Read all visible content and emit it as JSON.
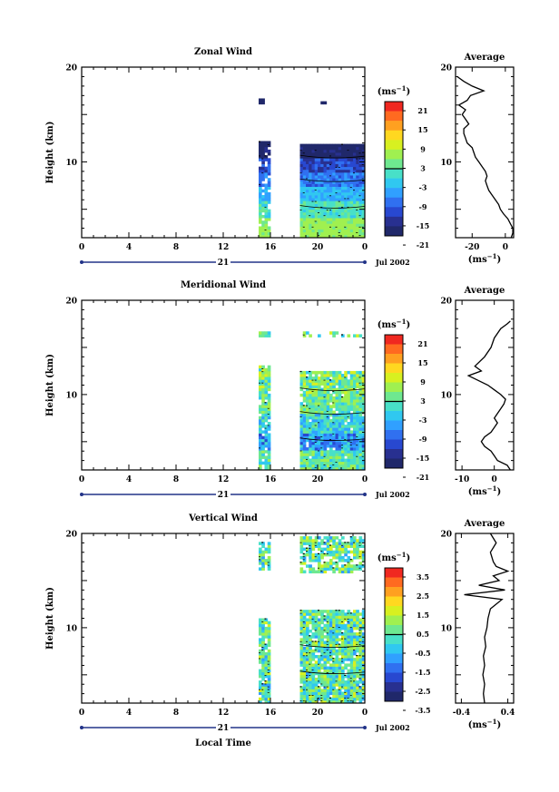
{
  "chart_data": [
    {
      "type": "heatmap",
      "title": "Zonal Wind",
      "ylabel": "Height (km)",
      "ylim": [
        2,
        20
      ],
      "y_ticks": [
        20,
        10
      ],
      "xlim": [
        0,
        24
      ],
      "x_ticks": [
        "0",
        "4",
        "8",
        "12",
        "16",
        "20",
        "0"
      ],
      "date_day": "21",
      "date_month": "Jul 2002",
      "colorbar": {
        "unit": "(ms",
        "unit_exp": "−1",
        "unit_close": ")",
        "labels": [
          "21",
          "15",
          "9",
          "3",
          "-3",
          "-9",
          "-15",
          "-21"
        ],
        "colors": [
          "#f02820",
          "#ff6a20",
          "#ffa020",
          "#ffd820",
          "#d8f020",
          "#a0f050",
          "#6ee890",
          "#48e0c8",
          "#30c8f0",
          "#30a0ff",
          "#3070f0",
          "#2848d0",
          "#283090",
          "#20286a"
        ]
      },
      "average": {
        "title": "Average",
        "xlabel": "(ms",
        "xlabel_exp": "−1",
        "xlabel_close": ")",
        "xlim": [
          -30,
          5
        ],
        "x_ticks": [
          "-20",
          "0"
        ],
        "y_ticks": [
          "20",
          "10"
        ],
        "profile": [
          [
            3.5,
            2
          ],
          [
            4.5,
            2.5
          ],
          [
            4.5,
            3
          ],
          [
            3,
            3.5
          ],
          [
            1.5,
            4
          ],
          [
            -1,
            4.5
          ],
          [
            -3,
            5
          ],
          [
            -4,
            5.5
          ],
          [
            -6,
            6
          ],
          [
            -8,
            6.5
          ],
          [
            -10,
            7
          ],
          [
            -11,
            7.5
          ],
          [
            -12,
            8
          ],
          [
            -11,
            8.5
          ],
          [
            -12,
            9
          ],
          [
            -14,
            9.5
          ],
          [
            -16,
            10
          ],
          [
            -18,
            10.5
          ],
          [
            -19,
            11
          ],
          [
            -20,
            11.5
          ],
          [
            -23,
            12
          ],
          [
            -24,
            12.5
          ],
          [
            -25,
            13
          ],
          [
            -25,
            13.5
          ],
          [
            -22,
            14
          ],
          [
            -24,
            14.5
          ],
          [
            -26,
            15
          ],
          [
            -24,
            15.5
          ],
          [
            -28,
            16
          ],
          [
            -23,
            16.5
          ],
          [
            -21,
            17
          ],
          [
            -13,
            17.5
          ],
          [
            -20,
            18
          ],
          [
            -25,
            18.5
          ],
          [
            -29,
            19
          ]
        ]
      }
    },
    {
      "type": "heatmap",
      "title": "Meridional Wind",
      "ylabel": "Height (km)",
      "ylim": [
        2,
        20
      ],
      "y_ticks": [
        20,
        10
      ],
      "xlim": [
        0,
        24
      ],
      "x_ticks": [
        "0",
        "4",
        "8",
        "12",
        "16",
        "20",
        "0"
      ],
      "date_day": "21",
      "date_month": "Jul 2002",
      "colorbar": {
        "unit": "(ms",
        "unit_exp": "−1",
        "unit_close": ")",
        "labels": [
          "21",
          "15",
          "9",
          "3",
          "-3",
          "-9",
          "-15",
          "-21"
        ],
        "colors": [
          "#f02820",
          "#ff6a20",
          "#ffa020",
          "#ffd820",
          "#d8f020",
          "#a0f050",
          "#6ee890",
          "#48e0c8",
          "#30c8f0",
          "#30a0ff",
          "#3070f0",
          "#2848d0",
          "#283090",
          "#20286a"
        ]
      },
      "average": {
        "title": "Average",
        "xlabel": "(ms",
        "xlabel_exp": "−1",
        "xlabel_close": ")",
        "xlim": [
          -12,
          6
        ],
        "x_ticks": [
          "-10",
          "0"
        ],
        "y_ticks": [
          "20",
          "10"
        ],
        "profile": [
          [
            5,
            2
          ],
          [
            4,
            2.5
          ],
          [
            1,
            3
          ],
          [
            0,
            3.5
          ],
          [
            -1,
            4
          ],
          [
            -3,
            4.5
          ],
          [
            -4,
            5
          ],
          [
            -3,
            5.5
          ],
          [
            -1,
            6
          ],
          [
            0,
            6.5
          ],
          [
            1,
            7
          ],
          [
            0,
            7.5
          ],
          [
            1,
            8
          ],
          [
            2,
            8.5
          ],
          [
            3,
            9
          ],
          [
            3.5,
            9.5
          ],
          [
            2,
            10
          ],
          [
            0,
            10.5
          ],
          [
            -2,
            11
          ],
          [
            -5,
            11.5
          ],
          [
            -8,
            12
          ],
          [
            -4,
            12.5
          ],
          [
            -6,
            13
          ],
          [
            -3,
            14
          ],
          [
            -1,
            15
          ],
          [
            0,
            16
          ],
          [
            2,
            17
          ],
          [
            4,
            17.5
          ],
          [
            5,
            17.8
          ]
        ]
      }
    },
    {
      "type": "heatmap",
      "title": "Vertical Wind",
      "xlabel": "Local Time",
      "ylabel": "Height (km)",
      "ylim": [
        2,
        20
      ],
      "y_ticks": [
        20,
        10
      ],
      "xlim": [
        0,
        24
      ],
      "x_ticks": [
        "0",
        "4",
        "8",
        "12",
        "16",
        "20",
        "0"
      ],
      "date_day": "21",
      "date_month": "Jul 2002",
      "colorbar": {
        "unit": "(ms",
        "unit_exp": "−1",
        "unit_close": ")",
        "labels": [
          "3.5",
          "2.5",
          "1.5",
          "0.5",
          "-0.5",
          "-1.5",
          "-2.5",
          "-3.5"
        ],
        "colors": [
          "#f02820",
          "#ff6a20",
          "#ffa020",
          "#ffd820",
          "#d8f020",
          "#a0f050",
          "#6ee890",
          "#48e0c8",
          "#30c8f0",
          "#30a0ff",
          "#3070f0",
          "#2848d0",
          "#283090",
          "#20286a"
        ]
      },
      "average": {
        "title": "Average",
        "xlabel": "(ms",
        "xlabel_exp": "−1",
        "xlabel_close": ")",
        "xlim": [
          -0.5,
          0.5
        ],
        "x_ticks": [
          "-0.4",
          "0.4"
        ],
        "y_ticks": [
          "20",
          "10"
        ],
        "profile": [
          [
            0,
            2
          ],
          [
            -0.02,
            3
          ],
          [
            0,
            4
          ],
          [
            -0.03,
            5
          ],
          [
            0,
            6
          ],
          [
            -0.02,
            7
          ],
          [
            0.02,
            8
          ],
          [
            0,
            9
          ],
          [
            0.04,
            10
          ],
          [
            0.06,
            11
          ],
          [
            0.1,
            12
          ],
          [
            0.3,
            13
          ],
          [
            -0.35,
            13.5
          ],
          [
            0.35,
            14
          ],
          [
            -0.1,
            14.5
          ],
          [
            0.25,
            15
          ],
          [
            0.15,
            15.5
          ],
          [
            0.4,
            16
          ],
          [
            0.2,
            16.5
          ],
          [
            0.15,
            17
          ],
          [
            0.1,
            18
          ],
          [
            0.2,
            19
          ],
          [
            0.1,
            20
          ]
        ]
      }
    }
  ]
}
